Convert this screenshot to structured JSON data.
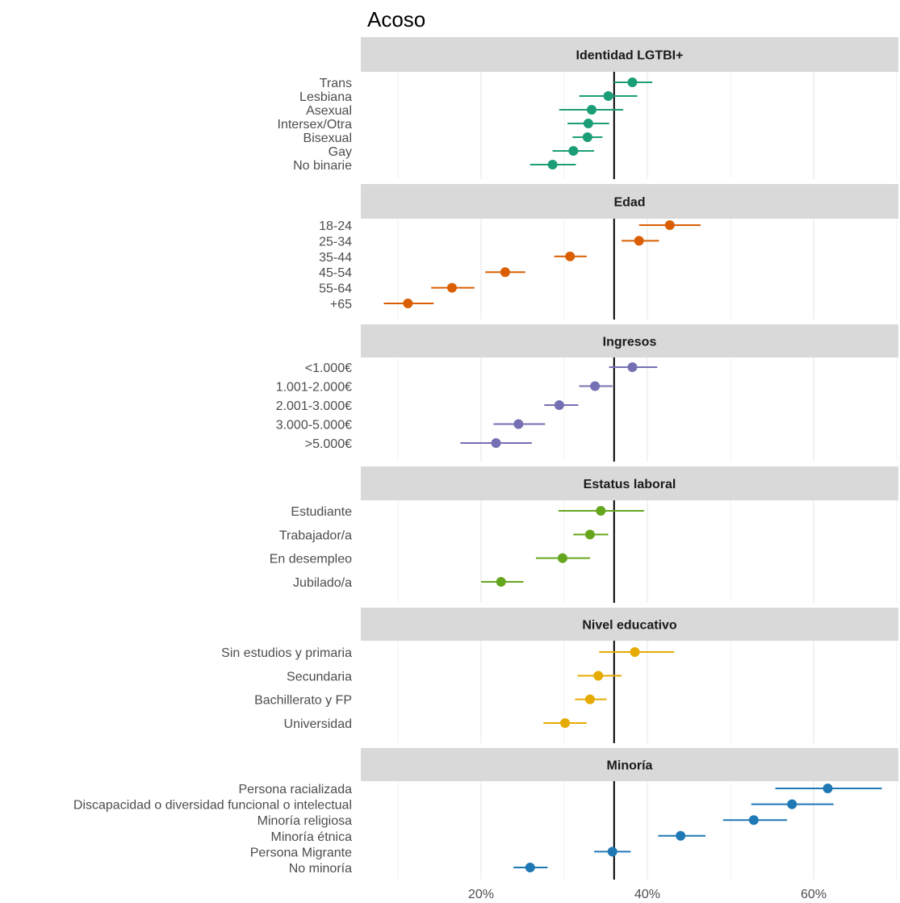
{
  "chart_data": {
    "type": "scatter",
    "subtype": "dot-and-whisker",
    "title": "Acoso",
    "xlabel": "",
    "ylabel": "",
    "xlim": [
      10,
      70
    ],
    "x_ticks": [
      20,
      40,
      60
    ],
    "x_tick_labels": [
      "20%",
      "40%",
      "60%"
    ],
    "reference_line": 36.0,
    "grid": "vertical",
    "legend": "none",
    "panels": [
      {
        "name": "Identidad LGTBI+",
        "color": "#1b9e77",
        "categories": [
          "Trans",
          "Lesbiana",
          "Asexual",
          "Intersex/Otra",
          "Bisexual",
          "Gay",
          "No binarie"
        ],
        "values": [
          38.2,
          35.3,
          33.3,
          32.9,
          32.8,
          31.1,
          28.6
        ],
        "lower": [
          36.0,
          31.8,
          29.4,
          30.4,
          31.0,
          28.6,
          25.9
        ],
        "upper": [
          40.6,
          38.8,
          37.1,
          35.4,
          34.6,
          33.6,
          31.4
        ]
      },
      {
        "name": "Edad",
        "color": "#d95f02",
        "categories": [
          "18-24",
          "25-34",
          "35-44",
          "45-54",
          "55-64",
          "+65"
        ],
        "values": [
          42.7,
          39.0,
          30.7,
          22.9,
          16.5,
          11.2
        ],
        "lower": [
          39.0,
          36.9,
          28.8,
          20.5,
          14.0,
          8.3
        ],
        "upper": [
          46.4,
          41.4,
          32.7,
          25.3,
          19.2,
          14.3
        ]
      },
      {
        "name": "Ingresos",
        "color": "#7570b3",
        "categories": [
          "<1.000€",
          "1.001-2.000€",
          "2.001-3.000€",
          "3.000-5.000€",
          ">5.000€"
        ],
        "values": [
          38.2,
          33.7,
          29.4,
          24.5,
          21.8
        ],
        "lower": [
          35.4,
          31.8,
          27.6,
          21.5,
          17.5
        ],
        "upper": [
          41.2,
          35.8,
          31.7,
          27.7,
          26.1
        ]
      },
      {
        "name": "Estatus laboral",
        "color": "#66a61e",
        "categories": [
          "Estudiante",
          "Trabajador/a",
          "En desempleo",
          "Jubilado/a"
        ],
        "values": [
          34.4,
          33.1,
          29.8,
          22.4
        ],
        "lower": [
          29.3,
          31.1,
          26.6,
          20.0
        ],
        "upper": [
          39.6,
          35.3,
          33.1,
          25.1
        ]
      },
      {
        "name": "Nivel educativo",
        "color": "#e6ab02",
        "categories": [
          "Sin estudios y primaria",
          "Secundaria",
          "Bachillerato y FP",
          "Universidad"
        ],
        "values": [
          38.5,
          34.1,
          33.1,
          30.1
        ],
        "lower": [
          34.2,
          31.6,
          31.3,
          27.5
        ],
        "upper": [
          43.2,
          36.9,
          35.1,
          32.7
        ]
      },
      {
        "name": "Minoría",
        "color": "#1f78b4",
        "categories": [
          "Persona racializada",
          "Discapacidad o diversidad funcional o intelectual",
          "Minoría religiosa",
          "Minoría étnica",
          "Persona Migrante",
          "No minoría"
        ],
        "values": [
          61.7,
          57.4,
          52.8,
          44.0,
          35.8,
          25.9
        ],
        "lower": [
          55.4,
          52.5,
          49.1,
          41.3,
          33.6,
          23.9
        ],
        "upper": [
          68.2,
          62.4,
          56.8,
          47.0,
          38.0,
          28.0
        ]
      }
    ]
  }
}
